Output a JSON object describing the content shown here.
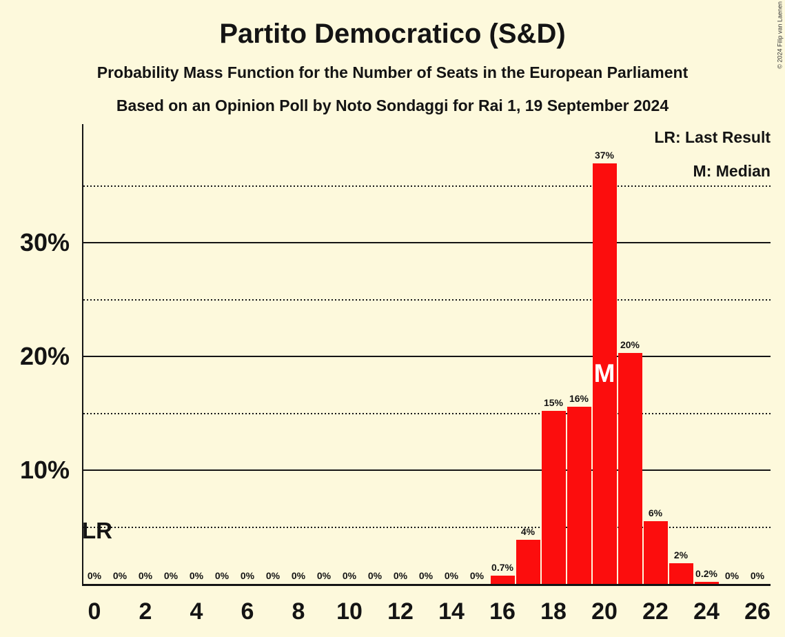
{
  "title": "Partito Democratico (S&D)",
  "subtitle1": "Probability Mass Function for the Number of Seats in the European Parliament",
  "subtitle2": "Based on an Opinion Poll by Noto Sondaggi for Rai 1, 19 September 2024",
  "copyright": "© 2024 Filip van Laenen",
  "legend": {
    "lr_label": "LR: Last Result",
    "m_label": "M: Median"
  },
  "colors": {
    "background": "#FDF9DC",
    "bar": "#FC0D0D",
    "text": "#141414",
    "median_letter": "#FFFFFF"
  },
  "chart_data": {
    "type": "bar",
    "x_axis_unit": "seats",
    "categories": [
      0,
      1,
      2,
      3,
      4,
      5,
      6,
      7,
      8,
      9,
      10,
      11,
      12,
      13,
      14,
      15,
      16,
      17,
      18,
      19,
      20,
      21,
      22,
      23,
      24,
      25,
      26
    ],
    "values": [
      0,
      0,
      0,
      0,
      0,
      0,
      0,
      0,
      0,
      0,
      0,
      0,
      0,
      0,
      0,
      0,
      0.7,
      3.9,
      15.2,
      15.6,
      37,
      20.3,
      5.5,
      1.8,
      0.2,
      0,
      0
    ],
    "bar_labels": [
      "0%",
      "0%",
      "0%",
      "0%",
      "0%",
      "0%",
      "0%",
      "0%",
      "0%",
      "0%",
      "0%",
      "0%",
      "0%",
      "0%",
      "0%",
      "0%",
      "0.7%",
      "4%",
      "15%",
      "16%",
      "37%",
      "20%",
      "6%",
      "2%",
      "0.2%",
      "0%",
      "0%"
    ],
    "xticks": [
      0,
      2,
      4,
      6,
      8,
      10,
      12,
      14,
      16,
      18,
      20,
      22,
      24,
      26
    ],
    "ytick_labels": [
      "10%",
      "20%",
      "30%"
    ],
    "ytick_values": [
      10,
      20,
      30
    ],
    "solid_gridlines_pct": [
      10,
      20,
      30
    ],
    "dotted_gridlines_pct": [
      5,
      15,
      25,
      35
    ],
    "ylim_pct": [
      0,
      40.4
    ],
    "median_seat": 20,
    "median_marker": "M",
    "last_result_marker": "LR"
  }
}
